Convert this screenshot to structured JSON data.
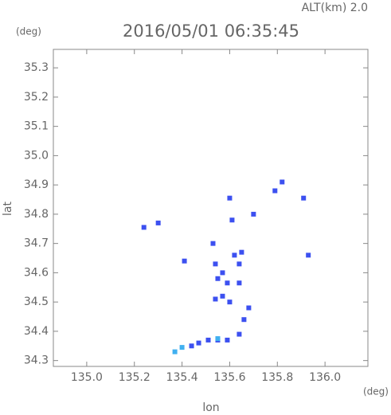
{
  "chart_data": {
    "type": "scatter",
    "title": "2016/05/01 06:35:45",
    "subtitle": "ALT(km) 2.0",
    "y_unit": "(deg)",
    "x_unit": "(deg)",
    "x_label": "lon",
    "y_label": "lat",
    "xlim": [
      134.86,
      136.18
    ],
    "ylim": [
      34.28,
      35.363
    ],
    "xticks": [
      {
        "value": 135.0,
        "label": "135.0"
      },
      135.2,
      135.4,
      135.6,
      135.8,
      {
        "value": 136.0,
        "label": "136.0"
      }
    ],
    "yticks": [
      35.3,
      35.2,
      35.1,
      {
        "value": 35.0,
        "label": "35.0"
      },
      34.9,
      34.8,
      34.7,
      34.6,
      34.5,
      34.4,
      34.3
    ],
    "series": [
      {
        "color": "#3c50f0",
        "x": [
          135.24,
          135.3,
          135.41,
          135.54,
          135.53,
          135.6,
          135.61,
          135.7,
          135.79,
          135.82,
          135.91,
          135.93,
          135.55,
          135.59,
          135.57,
          135.54,
          135.6,
          135.64,
          135.65,
          135.62,
          135.57,
          135.64,
          135.68,
          135.66,
          135.64,
          135.59,
          135.55,
          135.51,
          135.47,
          135.44
        ],
        "y": [
          34.755,
          34.77,
          34.64,
          34.63,
          34.7,
          34.855,
          34.78,
          34.8,
          34.88,
          34.91,
          34.855,
          34.66,
          34.58,
          34.565,
          34.52,
          34.51,
          34.5,
          34.63,
          34.67,
          34.66,
          34.6,
          34.565,
          34.48,
          34.44,
          34.39,
          34.37,
          34.37,
          34.37,
          34.36,
          34.35
        ]
      },
      {
        "color": "#40b0f0",
        "x": [
          135.4,
          135.37,
          135.55
        ],
        "y": [
          34.345,
          34.33,
          34.375
        ]
      }
    ]
  }
}
